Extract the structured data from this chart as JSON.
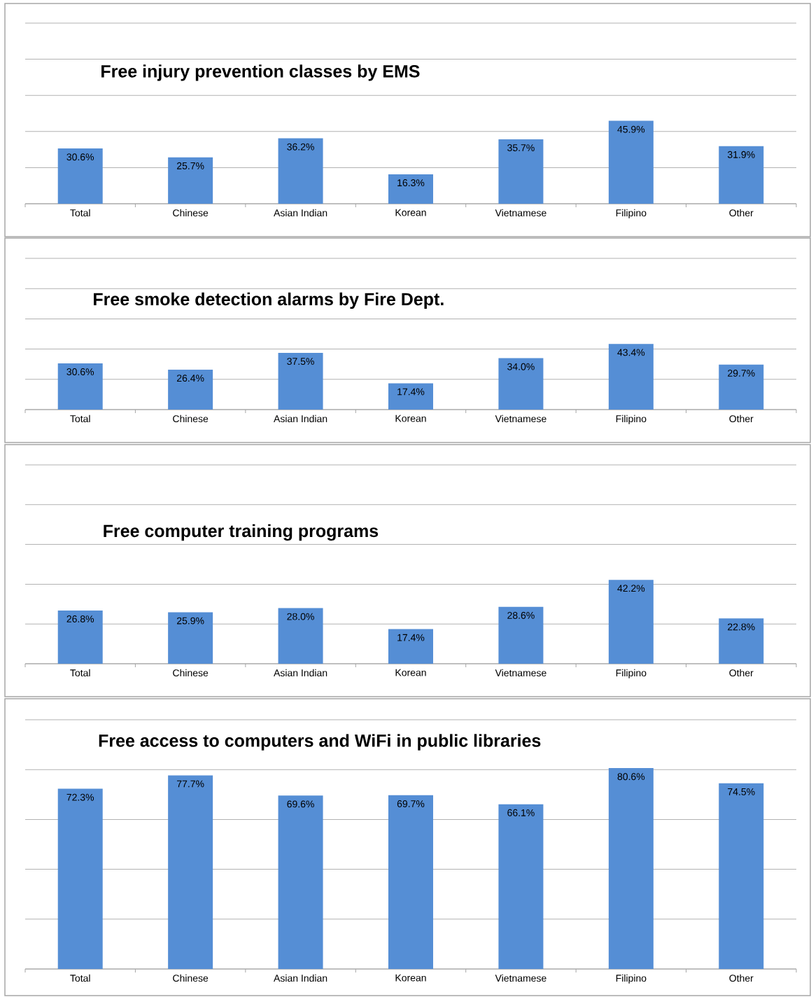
{
  "chart_data": [
    {
      "type": "bar",
      "title": "Free injury prevention classes by EMS",
      "categories": [
        "Total",
        "Chinese",
        "Asian Indian",
        "Korean",
        "Vietnamese",
        "Filipino",
        "Other"
      ],
      "values": [
        30.6,
        25.7,
        36.2,
        16.3,
        35.7,
        45.9,
        31.9
      ],
      "value_labels": [
        "30.6%",
        "25.7%",
        "36.2%",
        "16.3%",
        "35.7%",
        "45.9%",
        "31.9%"
      ],
      "color": "#558ed5",
      "ylim": [
        0,
        100
      ],
      "yticks": [
        {
          "value": 0,
          "label": null
        },
        {
          "value": 20,
          "label": null
        },
        {
          "value": 40,
          "label": null
        },
        {
          "value": 60,
          "label": null
        },
        {
          "value": 80,
          "label": null
        },
        {
          "value": 100,
          "label": null
        }
      ],
      "grid": "y",
      "tick_labels": "x"
    },
    {
      "type": "bar",
      "title": "Free smoke detection alarms by Fire Dept.",
      "categories": [
        "Total",
        "Chinese",
        "Asian Indian",
        "Korean",
        "Vietnamese",
        "Filipino",
        "Other"
      ],
      "values": [
        30.6,
        26.4,
        37.5,
        17.4,
        34.0,
        43.4,
        29.7
      ],
      "value_labels": [
        "30.6%",
        "26.4%",
        "37.5%",
        "17.4%",
        "34.0%",
        "43.4%",
        "29.7%"
      ],
      "color": "#558ed5",
      "ylim": [
        0,
        100
      ],
      "yticks": [
        {
          "value": 0,
          "label": null
        },
        {
          "value": 20,
          "label": null
        },
        {
          "value": 40,
          "label": null
        },
        {
          "value": 60,
          "label": null
        },
        {
          "value": 80,
          "label": null
        },
        {
          "value": 100,
          "label": null
        }
      ],
      "grid": "y",
      "tick_labels": "x"
    },
    {
      "type": "bar",
      "title": "Free computer training programs",
      "categories": [
        "Total",
        "Chinese",
        "Asian Indian",
        "Korean",
        "Vietnamese",
        "Filipino",
        "Other"
      ],
      "values": [
        26.8,
        25.9,
        28.0,
        17.4,
        28.6,
        42.2,
        22.8
      ],
      "value_labels": [
        "26.8%",
        "25.9%",
        "28.0%",
        "17.4%",
        "28.6%",
        "42.2%",
        "22.8%"
      ],
      "color": "#558ed5",
      "ylim": [
        0,
        100
      ],
      "yticks": [
        {
          "value": 0,
          "label": null
        },
        {
          "value": 20,
          "label": null
        },
        {
          "value": 40,
          "label": null
        },
        {
          "value": 60,
          "label": null
        },
        {
          "value": 80,
          "label": null
        },
        {
          "value": 100,
          "label": null
        }
      ],
      "grid": "y",
      "tick_labels": "x"
    },
    {
      "type": "bar",
      "title": "Free access to computers and WiFi in public libraries",
      "categories": [
        "Total",
        "Chinese",
        "Asian Indian",
        "Korean",
        "Vietnamese",
        "Filipino",
        "Other"
      ],
      "values": [
        72.3,
        77.7,
        69.6,
        69.7,
        66.1,
        80.6,
        74.5
      ],
      "value_labels": [
        "72.3%",
        "77.7%",
        "69.6%",
        "69.7%",
        "66.1%",
        "80.6%",
        "74.5%"
      ],
      "color": "#558ed5",
      "ylim": [
        0,
        100
      ],
      "yticks": [
        {
          "value": 0,
          "label": null
        },
        {
          "value": 20,
          "label": null
        },
        {
          "value": 40,
          "label": null
        },
        {
          "value": 60,
          "label": null
        },
        {
          "value": 80,
          "label": null
        },
        {
          "value": 100,
          "label": null
        }
      ],
      "grid": "y",
      "tick_labels": "x"
    }
  ]
}
